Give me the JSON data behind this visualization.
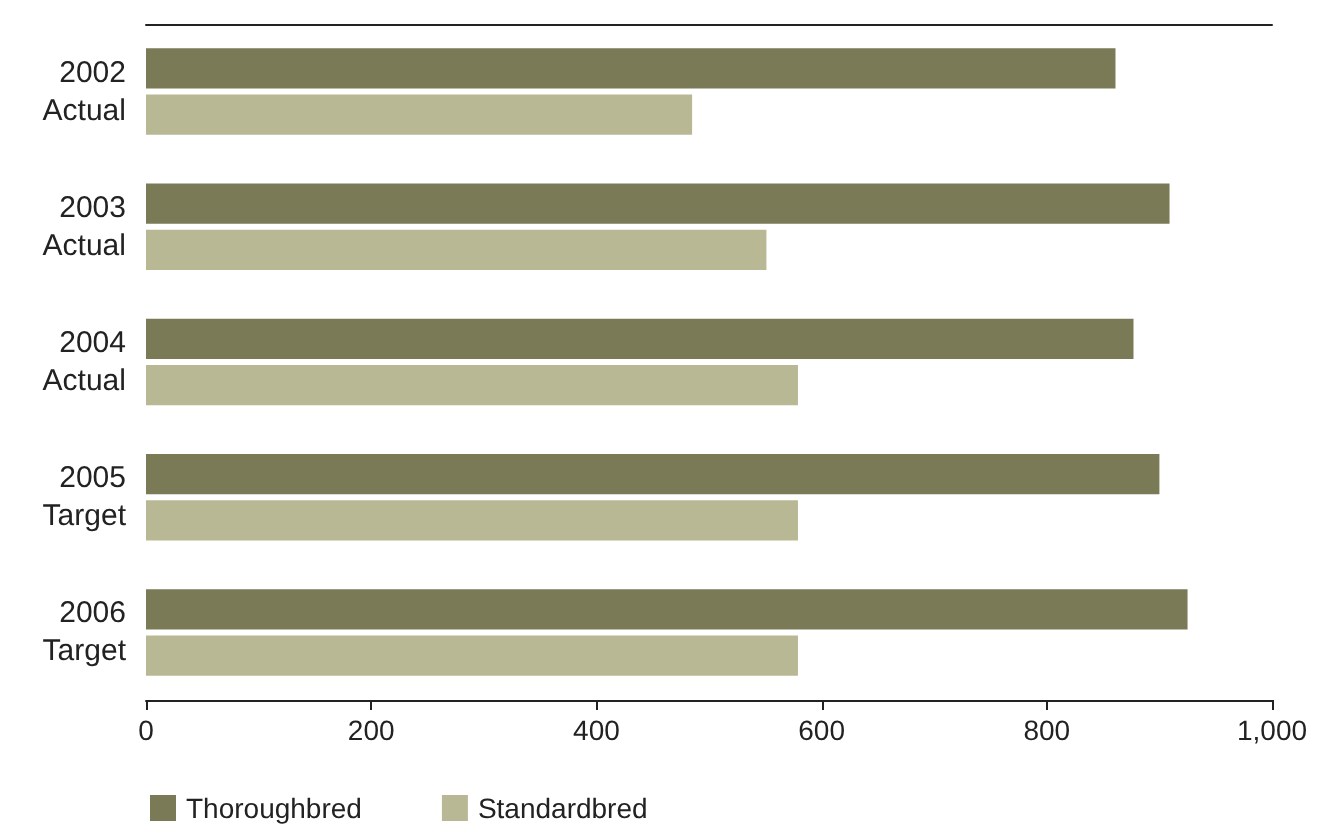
{
  "chart_data": {
    "type": "bar",
    "orientation": "horizontal",
    "categories": [
      "2002\nActual",
      "2003\nActual",
      "2004\nActual",
      "2005\nTarget",
      "2006\nTarget"
    ],
    "series": [
      {
        "name": "Thoroughbred",
        "color": "#7a7a57",
        "values": [
          861,
          909,
          877,
          900,
          925
        ]
      },
      {
        "name": "Standardbred",
        "color": "#b9b894",
        "values": [
          485,
          551,
          579,
          579,
          579
        ]
      }
    ],
    "xlim": [
      0,
      1000
    ],
    "xticks": [
      0,
      200,
      400,
      600,
      800,
      {
        "value": 1000,
        "label": "1,000"
      }
    ],
    "grid": false,
    "legend": "bottom left"
  }
}
